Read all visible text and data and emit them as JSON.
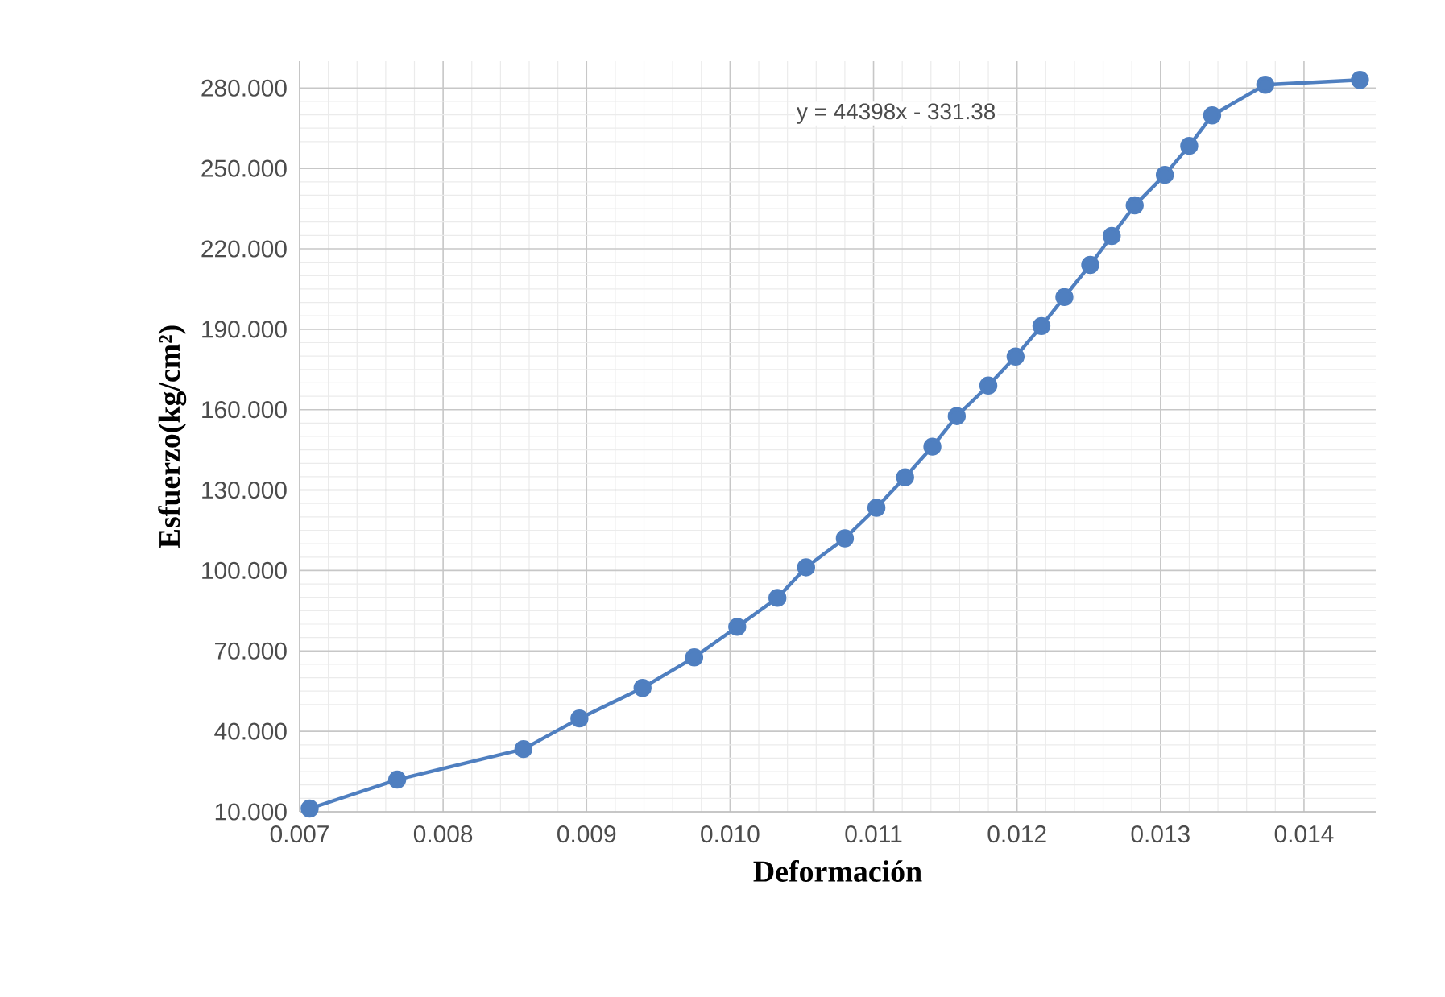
{
  "chart_data": {
    "type": "line",
    "xlabel": "Deformación",
    "ylabel": "Esfuerzo(kg/cm²)",
    "annotations": [
      "y = 44398x - 331.38"
    ],
    "x": [
      0.00707,
      0.00768,
      0.00856,
      0.00895,
      0.00939,
      0.00975,
      0.01005,
      0.01033,
      0.01053,
      0.0108,
      0.01102,
      0.01122,
      0.01141,
      0.01158,
      0.0118,
      0.01199,
      0.01217,
      0.01233,
      0.01251,
      0.01266,
      0.01282,
      0.01303,
      0.0132,
      0.01336,
      0.01373,
      0.01439
    ],
    "series": [
      {
        "color": "#4f7fc0",
        "values": [
          11.2,
          22,
          33.4,
          44.8,
          56.2,
          67.6,
          79,
          89.8,
          101.2,
          112,
          123.4,
          134.8,
          146.2,
          157.6,
          169,
          179.8,
          191.2,
          202,
          214,
          224.8,
          236.2,
          247.6,
          258.4,
          269.8,
          281.2,
          283
        ]
      }
    ],
    "xlim": [
      0.007,
      0.0145
    ],
    "ylim": [
      10,
      290
    ],
    "xticks": [
      {
        "value": 0.007,
        "label": "0.007"
      },
      {
        "value": 0.008,
        "label": "0.008"
      },
      {
        "value": 0.009,
        "label": "0.009"
      },
      {
        "value": 0.01,
        "label": "0.010"
      },
      {
        "value": 0.011,
        "label": "0.011"
      },
      {
        "value": 0.012,
        "label": "0.012"
      },
      {
        "value": 0.013,
        "label": "0.013"
      },
      {
        "value": 0.014,
        "label": "0.014"
      }
    ],
    "yticks": [
      {
        "value": 10,
        "label": "10.000"
      },
      {
        "value": 40,
        "label": "40.000"
      },
      {
        "value": 70,
        "label": "70.000"
      },
      {
        "value": 100,
        "label": "100.000"
      },
      {
        "value": 130,
        "label": "130.000"
      },
      {
        "value": 160,
        "label": "160.000"
      },
      {
        "value": 190,
        "label": "190.000"
      },
      {
        "value": 220,
        "label": "220.000"
      },
      {
        "value": 250,
        "label": "250.000"
      },
      {
        "value": 280,
        "label": "280.000"
      }
    ],
    "grid": true,
    "marker": "circle",
    "line_style": "solid"
  }
}
